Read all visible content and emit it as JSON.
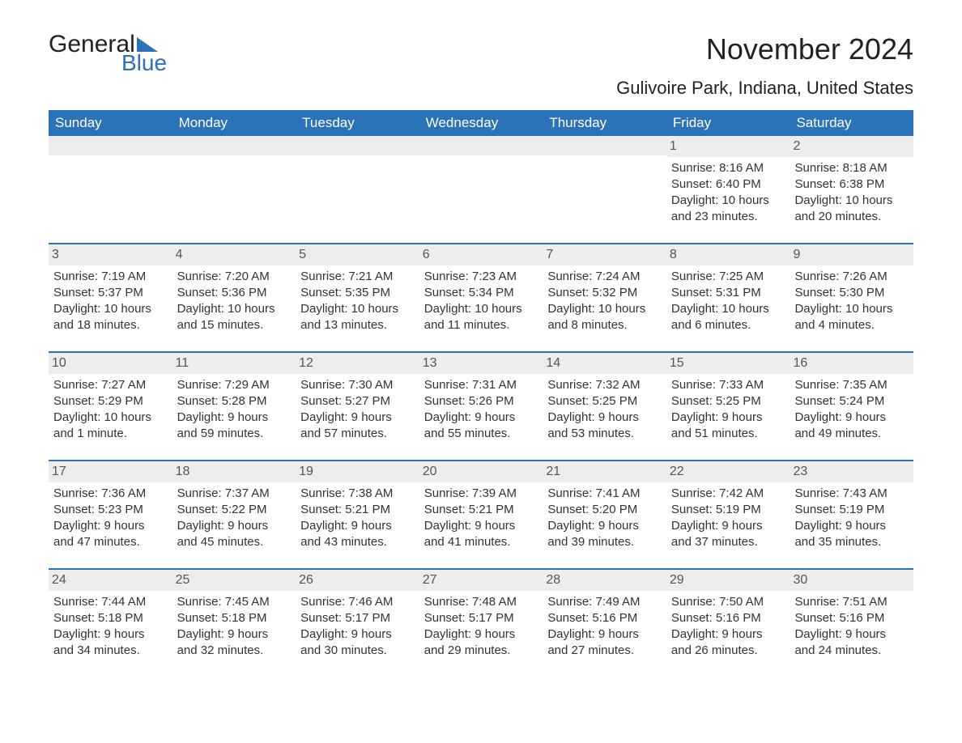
{
  "logo": {
    "text1": "General",
    "text2": "Blue"
  },
  "title": "November 2024",
  "location": "Gulivoire Park, Indiana, United States",
  "colors": {
    "header_bg": "#2a73b8",
    "header_text": "#ffffff",
    "daynum_bg": "#ededed",
    "border": "#2a73b8",
    "body_text": "#333333",
    "background": "#ffffff"
  },
  "weekdays": [
    "Sunday",
    "Monday",
    "Tuesday",
    "Wednesday",
    "Thursday",
    "Friday",
    "Saturday"
  ],
  "weeks": [
    [
      {
        "day": "",
        "sunrise": "",
        "sunset": "",
        "daylight": ""
      },
      {
        "day": "",
        "sunrise": "",
        "sunset": "",
        "daylight": ""
      },
      {
        "day": "",
        "sunrise": "",
        "sunset": "",
        "daylight": ""
      },
      {
        "day": "",
        "sunrise": "",
        "sunset": "",
        "daylight": ""
      },
      {
        "day": "",
        "sunrise": "",
        "sunset": "",
        "daylight": ""
      },
      {
        "day": "1",
        "sunrise": "Sunrise: 8:16 AM",
        "sunset": "Sunset: 6:40 PM",
        "daylight": "Daylight: 10 hours and 23 minutes."
      },
      {
        "day": "2",
        "sunrise": "Sunrise: 8:18 AM",
        "sunset": "Sunset: 6:38 PM",
        "daylight": "Daylight: 10 hours and 20 minutes."
      }
    ],
    [
      {
        "day": "3",
        "sunrise": "Sunrise: 7:19 AM",
        "sunset": "Sunset: 5:37 PM",
        "daylight": "Daylight: 10 hours and 18 minutes."
      },
      {
        "day": "4",
        "sunrise": "Sunrise: 7:20 AM",
        "sunset": "Sunset: 5:36 PM",
        "daylight": "Daylight: 10 hours and 15 minutes."
      },
      {
        "day": "5",
        "sunrise": "Sunrise: 7:21 AM",
        "sunset": "Sunset: 5:35 PM",
        "daylight": "Daylight: 10 hours and 13 minutes."
      },
      {
        "day": "6",
        "sunrise": "Sunrise: 7:23 AM",
        "sunset": "Sunset: 5:34 PM",
        "daylight": "Daylight: 10 hours and 11 minutes."
      },
      {
        "day": "7",
        "sunrise": "Sunrise: 7:24 AM",
        "sunset": "Sunset: 5:32 PM",
        "daylight": "Daylight: 10 hours and 8 minutes."
      },
      {
        "day": "8",
        "sunrise": "Sunrise: 7:25 AM",
        "sunset": "Sunset: 5:31 PM",
        "daylight": "Daylight: 10 hours and 6 minutes."
      },
      {
        "day": "9",
        "sunrise": "Sunrise: 7:26 AM",
        "sunset": "Sunset: 5:30 PM",
        "daylight": "Daylight: 10 hours and 4 minutes."
      }
    ],
    [
      {
        "day": "10",
        "sunrise": "Sunrise: 7:27 AM",
        "sunset": "Sunset: 5:29 PM",
        "daylight": "Daylight: 10 hours and 1 minute."
      },
      {
        "day": "11",
        "sunrise": "Sunrise: 7:29 AM",
        "sunset": "Sunset: 5:28 PM",
        "daylight": "Daylight: 9 hours and 59 minutes."
      },
      {
        "day": "12",
        "sunrise": "Sunrise: 7:30 AM",
        "sunset": "Sunset: 5:27 PM",
        "daylight": "Daylight: 9 hours and 57 minutes."
      },
      {
        "day": "13",
        "sunrise": "Sunrise: 7:31 AM",
        "sunset": "Sunset: 5:26 PM",
        "daylight": "Daylight: 9 hours and 55 minutes."
      },
      {
        "day": "14",
        "sunrise": "Sunrise: 7:32 AM",
        "sunset": "Sunset: 5:25 PM",
        "daylight": "Daylight: 9 hours and 53 minutes."
      },
      {
        "day": "15",
        "sunrise": "Sunrise: 7:33 AM",
        "sunset": "Sunset: 5:25 PM",
        "daylight": "Daylight: 9 hours and 51 minutes."
      },
      {
        "day": "16",
        "sunrise": "Sunrise: 7:35 AM",
        "sunset": "Sunset: 5:24 PM",
        "daylight": "Daylight: 9 hours and 49 minutes."
      }
    ],
    [
      {
        "day": "17",
        "sunrise": "Sunrise: 7:36 AM",
        "sunset": "Sunset: 5:23 PM",
        "daylight": "Daylight: 9 hours and 47 minutes."
      },
      {
        "day": "18",
        "sunrise": "Sunrise: 7:37 AM",
        "sunset": "Sunset: 5:22 PM",
        "daylight": "Daylight: 9 hours and 45 minutes."
      },
      {
        "day": "19",
        "sunrise": "Sunrise: 7:38 AM",
        "sunset": "Sunset: 5:21 PM",
        "daylight": "Daylight: 9 hours and 43 minutes."
      },
      {
        "day": "20",
        "sunrise": "Sunrise: 7:39 AM",
        "sunset": "Sunset: 5:21 PM",
        "daylight": "Daylight: 9 hours and 41 minutes."
      },
      {
        "day": "21",
        "sunrise": "Sunrise: 7:41 AM",
        "sunset": "Sunset: 5:20 PM",
        "daylight": "Daylight: 9 hours and 39 minutes."
      },
      {
        "day": "22",
        "sunrise": "Sunrise: 7:42 AM",
        "sunset": "Sunset: 5:19 PM",
        "daylight": "Daylight: 9 hours and 37 minutes."
      },
      {
        "day": "23",
        "sunrise": "Sunrise: 7:43 AM",
        "sunset": "Sunset: 5:19 PM",
        "daylight": "Daylight: 9 hours and 35 minutes."
      }
    ],
    [
      {
        "day": "24",
        "sunrise": "Sunrise: 7:44 AM",
        "sunset": "Sunset: 5:18 PM",
        "daylight": "Daylight: 9 hours and 34 minutes."
      },
      {
        "day": "25",
        "sunrise": "Sunrise: 7:45 AM",
        "sunset": "Sunset: 5:18 PM",
        "daylight": "Daylight: 9 hours and 32 minutes."
      },
      {
        "day": "26",
        "sunrise": "Sunrise: 7:46 AM",
        "sunset": "Sunset: 5:17 PM",
        "daylight": "Daylight: 9 hours and 30 minutes."
      },
      {
        "day": "27",
        "sunrise": "Sunrise: 7:48 AM",
        "sunset": "Sunset: 5:17 PM",
        "daylight": "Daylight: 9 hours and 29 minutes."
      },
      {
        "day": "28",
        "sunrise": "Sunrise: 7:49 AM",
        "sunset": "Sunset: 5:16 PM",
        "daylight": "Daylight: 9 hours and 27 minutes."
      },
      {
        "day": "29",
        "sunrise": "Sunrise: 7:50 AM",
        "sunset": "Sunset: 5:16 PM",
        "daylight": "Daylight: 9 hours and 26 minutes."
      },
      {
        "day": "30",
        "sunrise": "Sunrise: 7:51 AM",
        "sunset": "Sunset: 5:16 PM",
        "daylight": "Daylight: 9 hours and 24 minutes."
      }
    ]
  ]
}
